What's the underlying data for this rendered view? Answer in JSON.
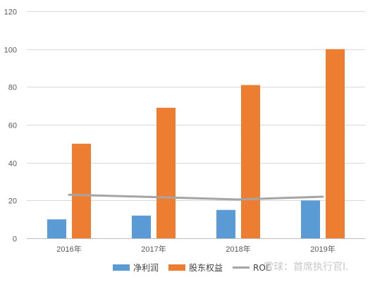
{
  "chart_data": {
    "type": "bar",
    "categories": [
      "2016年",
      "2017年",
      "2018年",
      "2019年"
    ],
    "series": [
      {
        "name": "净利润",
        "type": "bar",
        "color": "#5b9bd5",
        "values": [
          10,
          12,
          15,
          20
        ]
      },
      {
        "name": "股东权益",
        "type": "bar",
        "color": "#ed7d31",
        "values": [
          50,
          69,
          81,
          100
        ]
      },
      {
        "name": "ROE",
        "type": "line",
        "color": "#a5a5a5",
        "values": [
          23,
          21.8,
          20.5,
          22
        ]
      }
    ],
    "title": "",
    "xlabel": "",
    "ylabel": "",
    "ylim": [
      0,
      120
    ],
    "yticks": [
      0,
      20,
      40,
      60,
      80,
      100,
      120
    ],
    "grid": true,
    "legend_position": "bottom"
  },
  "watermark": "雪球：首席执行官I."
}
